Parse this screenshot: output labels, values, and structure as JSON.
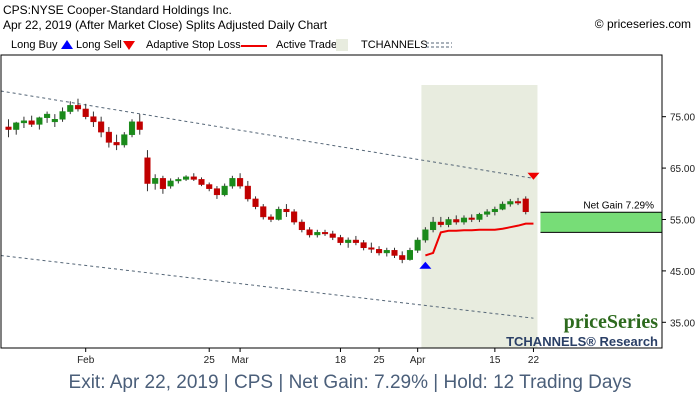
{
  "header": {
    "title": "CPS:NYSE Cooper-Standard Holdings Inc.",
    "subtitle": "Apr 22, 2019 (After Market Close)  Splits Adjusted Daily Chart",
    "copyright": "© priceseries.com"
  },
  "legend": {
    "long_buy": "Long Buy",
    "long_sell": "Long Sell",
    "adaptive_stop": "Adaptive Stop Loss",
    "active_trade": "Active Trade",
    "tchannels": "TCHANNELS"
  },
  "colors": {
    "up": "#1a8a1a",
    "down": "#c00000",
    "buy_arrow": "#0000ff",
    "sell_arrow": "#ee0000",
    "stop_line": "#ee0000",
    "active_zone": "#e8ecdf",
    "gain_box": "#77dd77",
    "channel": "#556677"
  },
  "chart_data": {
    "type": "candlestick",
    "ylim": [
      30,
      87
    ],
    "y_ticks": [
      35,
      45,
      55,
      65,
      75
    ],
    "y_tick_labels": [
      "35.00",
      "45.00",
      "55.00",
      "65.00",
      "75.00"
    ],
    "x_tick_labels": [
      {
        "label": "Feb",
        "index": 10
      },
      {
        "label": "25",
        "index": 26
      },
      {
        "label": "Mar",
        "index": 30
      },
      {
        "label": "18",
        "index": 43
      },
      {
        "label": "25",
        "index": 48
      },
      {
        "label": "Apr",
        "index": 53
      },
      {
        "label": "15",
        "index": 63
      },
      {
        "label": "22",
        "index": 68
      }
    ],
    "candles": [
      [
        73.0,
        74.5,
        71.0,
        72.5
      ],
      [
        72.5,
        74.0,
        71.5,
        73.8
      ],
      [
        73.8,
        75.0,
        72.8,
        74.2
      ],
      [
        74.2,
        75.2,
        73.0,
        73.5
      ],
      [
        73.5,
        75.0,
        72.5,
        74.8
      ],
      [
        74.8,
        76.0,
        73.8,
        75.5
      ],
      [
        74.0,
        75.5,
        73.0,
        74.5
      ],
      [
        74.5,
        76.8,
        74.0,
        76.0
      ],
      [
        76.0,
        78.0,
        75.5,
        77.2
      ],
      [
        77.2,
        78.5,
        76.0,
        76.5
      ],
      [
        76.5,
        77.5,
        74.5,
        75.0
      ],
      [
        75.0,
        76.0,
        73.0,
        74.0
      ],
      [
        74.0,
        75.0,
        71.0,
        72.0
      ],
      [
        72.0,
        73.0,
        69.0,
        70.0
      ],
      [
        70.0,
        71.5,
        68.5,
        69.5
      ],
      [
        69.5,
        72.0,
        69.0,
        71.5
      ],
      [
        71.5,
        74.5,
        71.0,
        74.0
      ],
      [
        74.0,
        75.5,
        71.5,
        72.5
      ],
      [
        67.0,
        68.5,
        60.5,
        62.0
      ],
      [
        62.0,
        63.8,
        60.8,
        63.0
      ],
      [
        63.0,
        63.5,
        60.0,
        61.0
      ],
      [
        61.5,
        63.0,
        61.0,
        62.5
      ],
      [
        62.5,
        63.2,
        62.0,
        62.8
      ],
      [
        62.8,
        63.6,
        62.5,
        63.3
      ],
      [
        63.3,
        64.0,
        62.5,
        62.8
      ],
      [
        62.8,
        63.2,
        61.5,
        61.8
      ],
      [
        61.8,
        62.2,
        60.5,
        61.0
      ],
      [
        61.0,
        61.5,
        59.0,
        59.8
      ],
      [
        59.8,
        62.0,
        59.5,
        61.5
      ],
      [
        61.5,
        63.5,
        61.0,
        63.0
      ],
      [
        63.0,
        64.0,
        61.0,
        61.5
      ],
      [
        61.5,
        62.5,
        58.5,
        59.0
      ],
      [
        59.0,
        59.5,
        57.0,
        57.5
      ],
      [
        57.5,
        58.0,
        55.0,
        55.5
      ],
      [
        55.5,
        56.0,
        54.5,
        55.0
      ],
      [
        55.0,
        57.5,
        54.8,
        57.0
      ],
      [
        57.0,
        58.0,
        55.5,
        56.5
      ],
      [
        56.5,
        57.0,
        54.0,
        54.5
      ],
      [
        54.5,
        55.0,
        52.5,
        53.0
      ],
      [
        53.0,
        53.5,
        51.5,
        52.0
      ],
      [
        52.0,
        53.0,
        51.5,
        52.5
      ],
      [
        52.5,
        53.0,
        51.8,
        52.2
      ],
      [
        52.2,
        52.8,
        51.0,
        51.5
      ],
      [
        51.5,
        52.0,
        50.0,
        50.5
      ],
      [
        50.5,
        51.5,
        49.5,
        51.0
      ],
      [
        51.0,
        51.8,
        50.0,
        50.5
      ],
      [
        50.5,
        51.0,
        49.0,
        49.5
      ],
      [
        49.5,
        50.5,
        48.5,
        49.2
      ],
      [
        49.2,
        49.8,
        48.0,
        48.5
      ],
      [
        48.5,
        49.5,
        47.8,
        49.0
      ],
      [
        49.0,
        49.5,
        47.5,
        48.0
      ],
      [
        48.0,
        48.8,
        46.5,
        47.2
      ],
      [
        47.2,
        49.5,
        47.0,
        49.0
      ],
      [
        49.0,
        51.5,
        48.5,
        51.0
      ],
      [
        51.0,
        53.5,
        50.5,
        53.0
      ],
      [
        53.0,
        55.5,
        52.5,
        54.5
      ],
      [
        54.5,
        55.5,
        53.5,
        54.0
      ],
      [
        54.0,
        55.5,
        53.5,
        55.0
      ],
      [
        55.0,
        55.8,
        54.0,
        54.5
      ],
      [
        54.5,
        55.8,
        54.0,
        55.3
      ],
      [
        55.3,
        56.0,
        54.5,
        55.0
      ],
      [
        55.0,
        56.3,
        54.5,
        56.0
      ],
      [
        56.0,
        57.0,
        55.5,
        56.5
      ],
      [
        56.5,
        57.5,
        55.8,
        57.0
      ],
      [
        57.0,
        58.5,
        56.8,
        58.0
      ],
      [
        58.0,
        59.0,
        57.5,
        58.5
      ],
      [
        58.5,
        59.2,
        57.8,
        58.2
      ],
      [
        59.0,
        59.5,
        56.0,
        56.5
      ]
    ],
    "candle_x_start": 8.5,
    "candle_spacing": 7.72,
    "active_trade_indices": [
      54,
      68
    ],
    "stop_line": [
      [
        54,
        48.0
      ],
      [
        55,
        48.5
      ],
      [
        56,
        52.5
      ],
      [
        57,
        52.8
      ],
      [
        58,
        52.8
      ],
      [
        59,
        52.9
      ],
      [
        60,
        52.9
      ],
      [
        61,
        53.0
      ],
      [
        62,
        53.0
      ],
      [
        63,
        53.0
      ],
      [
        64,
        53.2
      ],
      [
        65,
        53.5
      ],
      [
        66,
        53.8
      ],
      [
        67,
        54.2
      ],
      [
        68,
        54.2
      ]
    ],
    "channel_upper": [
      [
        -1,
        80.0
      ],
      [
        68,
        63.0
      ]
    ],
    "channel_lower": [
      [
        -1,
        48.0
      ],
      [
        68,
        35.8
      ]
    ],
    "buy_signal": {
      "index": 54,
      "price": 46.0
    },
    "sell_signal": {
      "index": 68,
      "price": 63.5
    },
    "net_gain": {
      "label": "Net Gain 7.29%",
      "low": 52.5,
      "high": 56.4
    },
    "brand": {
      "name": "priceSeries",
      "sub": "TCHANNELS",
      "research": "Research"
    }
  },
  "footer": {
    "text": "Exit: Apr 22, 2019 | CPS | Net Gain: 7.29% | Hold: 12 Trading Days"
  }
}
